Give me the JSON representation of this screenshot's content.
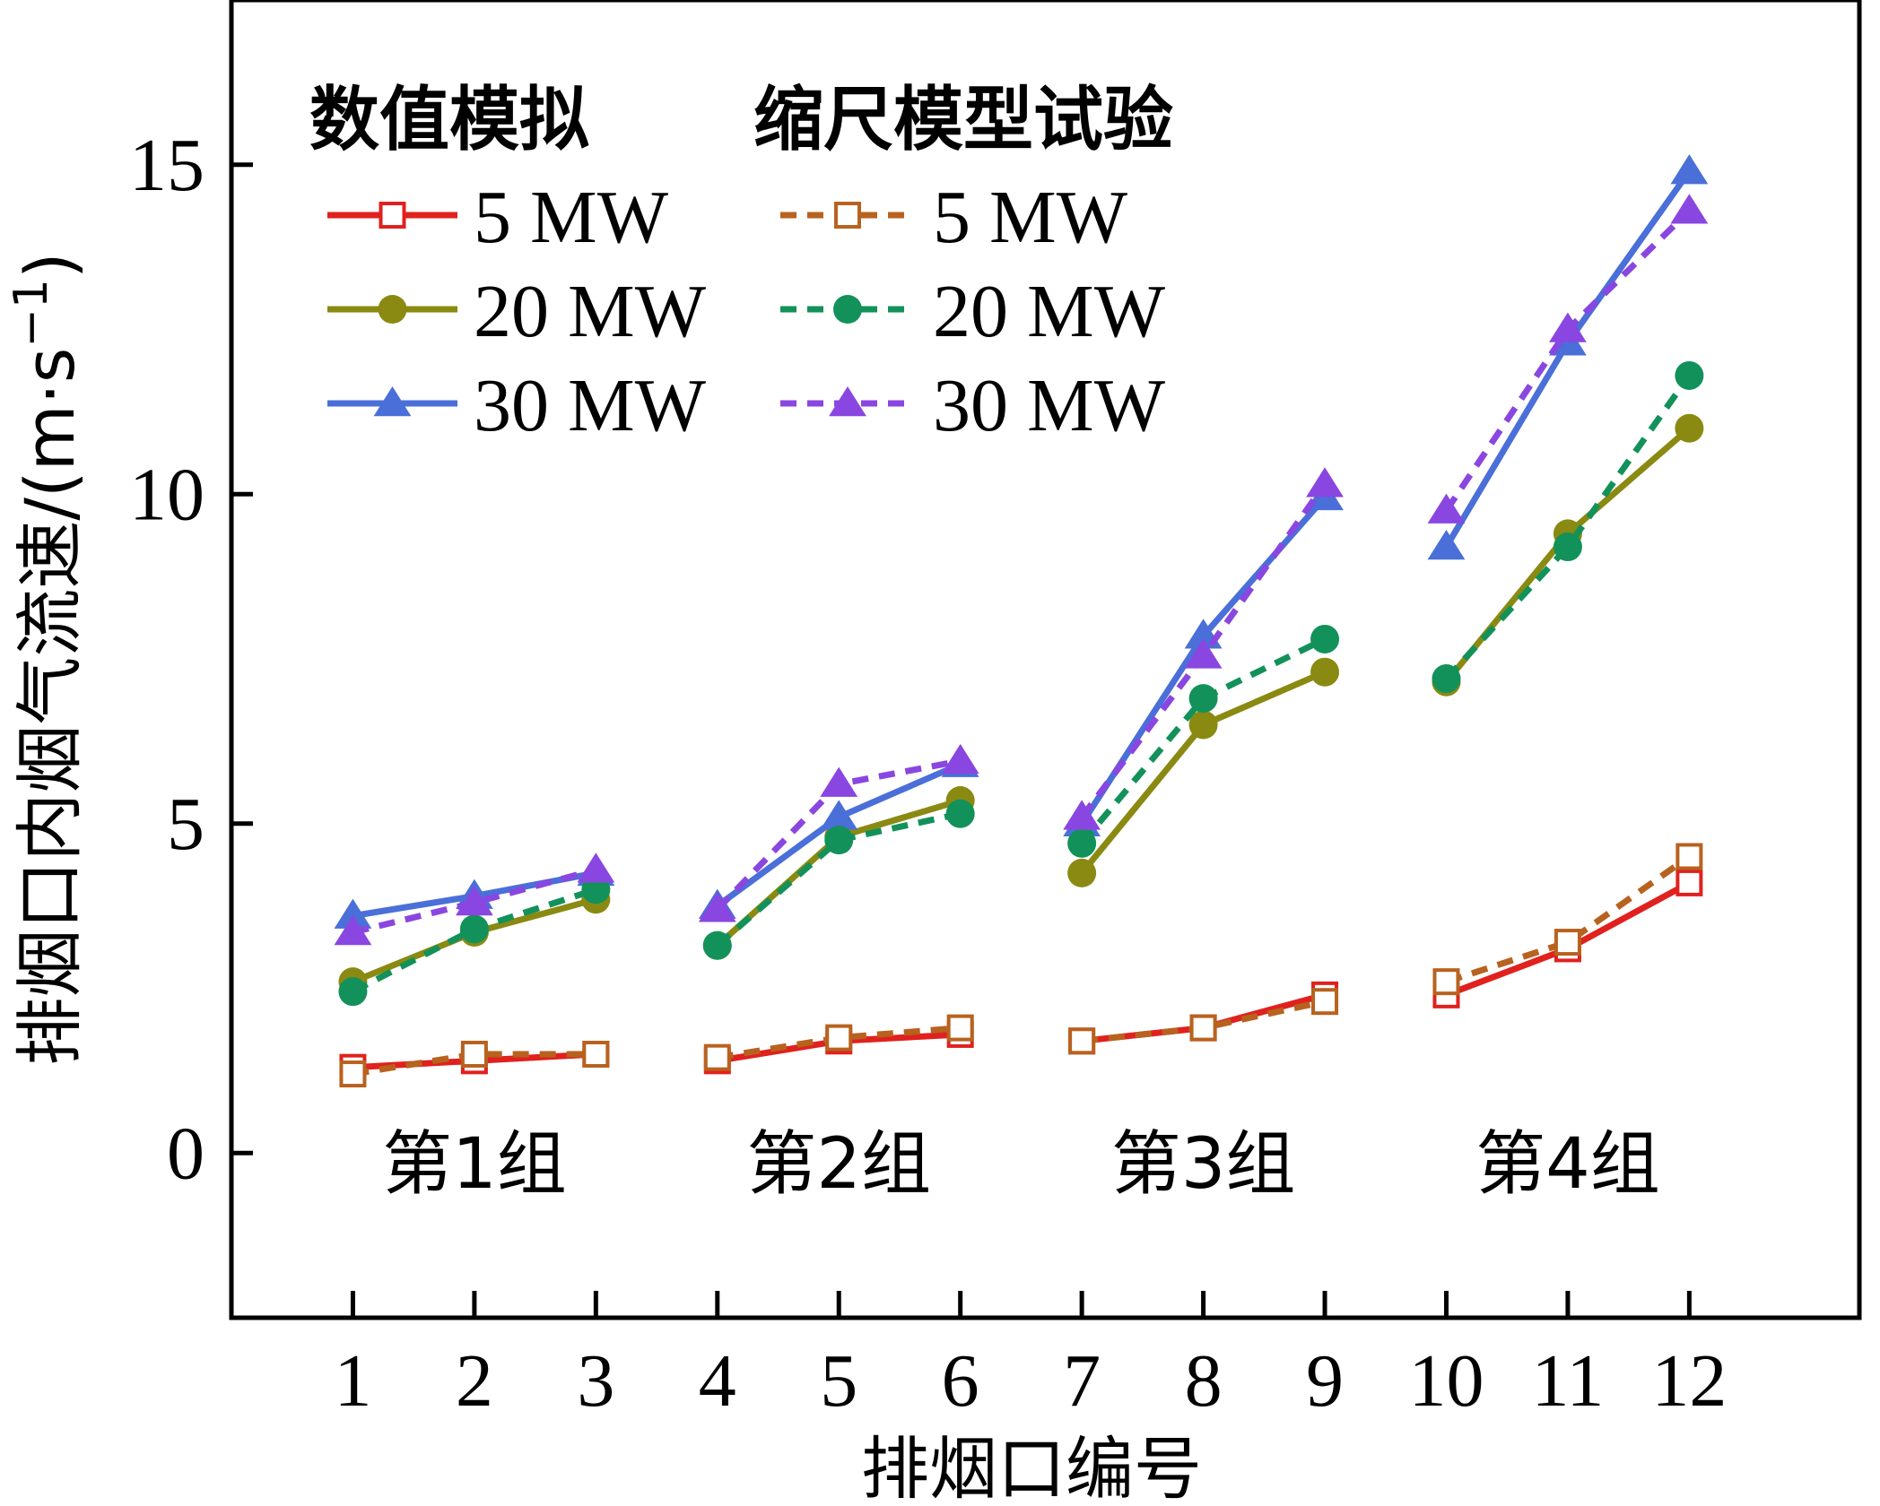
{
  "chart_data": {
    "type": "line",
    "xlabel": "排烟口编号",
    "ylabel": "排烟口内烟气流速/(m·s⁻¹)",
    "ylabel_parts": {
      "main": "排烟口内烟气流速/(m·s",
      "sup": "−1",
      "close": ")"
    },
    "x_ticks": [
      "1",
      "2",
      "3",
      "4",
      "5",
      "6",
      "7",
      "8",
      "9",
      "10",
      "11",
      "12"
    ],
    "y_ticks": [
      "0",
      "5",
      "10",
      "15"
    ],
    "xlim": [
      0,
      13.4
    ],
    "ylim": [
      -2.5,
      17.5
    ],
    "grid": false,
    "legend_position": "top-left",
    "legend_headers": [
      "数值模拟",
      "缩尺模型试验"
    ],
    "groups": [
      {
        "label": "第1组",
        "x": [
          1,
          2,
          3
        ]
      },
      {
        "label": "第2组",
        "x": [
          4,
          5,
          6
        ]
      },
      {
        "label": "第3组",
        "x": [
          7,
          8,
          9
        ]
      },
      {
        "label": "第4组",
        "x": [
          10,
          11,
          12
        ]
      }
    ],
    "series": [
      {
        "name": "5 MW",
        "source": "数值模拟",
        "color": "#e0211d",
        "dash": "solid",
        "marker": "square-open",
        "values": [
          1.3,
          1.4,
          1.5,
          1.4,
          1.7,
          1.8,
          1.7,
          1.9,
          2.4,
          2.4,
          3.1,
          4.1
        ]
      },
      {
        "name": "20 MW",
        "source": "数值模拟",
        "color": "#8a8a12",
        "dash": "solid",
        "marker": "circle",
        "values": [
          2.6,
          3.35,
          3.85,
          3.15,
          4.8,
          5.35,
          4.25,
          6.5,
          7.3,
          7.15,
          9.4,
          11.0
        ]
      },
      {
        "name": "30 MW",
        "source": "数值模拟",
        "color": "#4a6fd8",
        "dash": "solid",
        "marker": "triangle",
        "values": [
          3.6,
          3.9,
          4.25,
          3.75,
          5.1,
          5.9,
          5.0,
          7.85,
          9.95,
          9.2,
          12.3,
          14.9
        ]
      },
      {
        "name": "5 MW",
        "source": "缩尺模型试验",
        "color": "#b8621f",
        "dash": "dashed",
        "marker": "square-open",
        "values": [
          1.2,
          1.5,
          1.5,
          1.45,
          1.75,
          1.9,
          1.7,
          1.9,
          2.3,
          2.6,
          3.2,
          4.5
        ]
      },
      {
        "name": "20 MW",
        "source": "缩尺模型试验",
        "color": "#13915a",
        "dash": "dashed",
        "marker": "circle",
        "values": [
          2.45,
          3.4,
          4.0,
          3.15,
          4.75,
          5.15,
          4.7,
          6.9,
          7.8,
          7.2,
          9.2,
          11.8
        ]
      },
      {
        "name": "30 MW",
        "source": "缩尺模型试验",
        "color": "#8a46e0",
        "dash": "dashed",
        "marker": "triangle",
        "values": [
          3.35,
          3.8,
          4.3,
          3.7,
          5.6,
          5.95,
          5.1,
          7.55,
          10.15,
          9.75,
          12.5,
          14.3
        ]
      }
    ]
  }
}
